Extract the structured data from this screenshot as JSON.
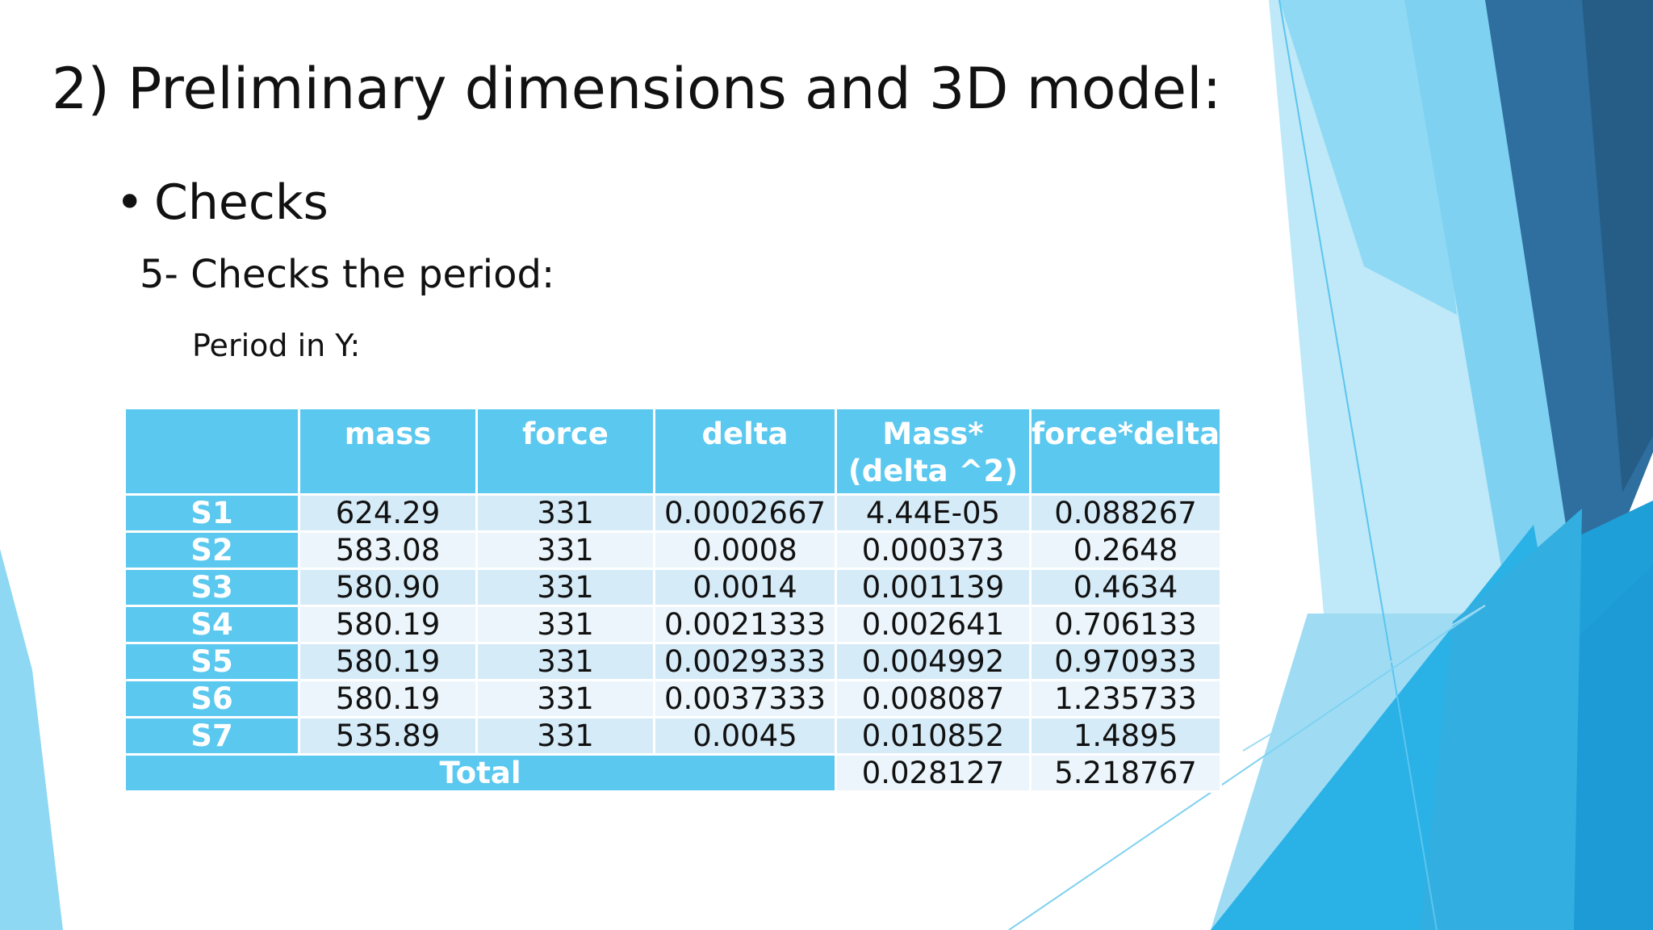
{
  "slide": {
    "title": "2) Preliminary dimensions and 3D model:",
    "bullet": "Checks",
    "subheading": "5- Checks the period:",
    "caption": "Period in Y:"
  },
  "table": {
    "headers": [
      "",
      "mass",
      "force",
      "delta",
      "Mass*(delta ^2)",
      "force*delta"
    ],
    "rows": [
      {
        "label": "S1",
        "mass": "624.29",
        "force": "331",
        "delta": "0.0002667",
        "mass_delta2": "4.44E-05",
        "force_delta": "0.088267"
      },
      {
        "label": "S2",
        "mass": "583.08",
        "force": "331",
        "delta": "0.0008",
        "mass_delta2": "0.000373",
        "force_delta": "0.2648"
      },
      {
        "label": "S3",
        "mass": "580.90",
        "force": "331",
        "delta": "0.0014",
        "mass_delta2": "0.001139",
        "force_delta": "0.4634"
      },
      {
        "label": "S4",
        "mass": "580.19",
        "force": "331",
        "delta": "0.0021333",
        "mass_delta2": "0.002641",
        "force_delta": "0.706133"
      },
      {
        "label": "S5",
        "mass": "580.19",
        "force": "331",
        "delta": "0.0029333",
        "mass_delta2": "0.004992",
        "force_delta": "0.970933"
      },
      {
        "label": "S6",
        "mass": "580.19",
        "force": "331",
        "delta": "0.0037333",
        "mass_delta2": "0.008087",
        "force_delta": "1.235733"
      },
      {
        "label": "S7",
        "mass": "535.89",
        "force": "331",
        "delta": "0.0045",
        "mass_delta2": "0.010852",
        "force_delta": "1.4895"
      }
    ],
    "total": {
      "label": "Total",
      "mass_delta2": "0.028127",
      "force_delta": "5.218767"
    }
  },
  "colors": {
    "header_fill": "#5bc8ef",
    "row_band_dark": "#d6ebf8",
    "row_band_light": "#ebf5fb",
    "accent_light": "#7fd1f1",
    "accent_mid": "#2aaee3",
    "accent_dark": "#2e6f9f"
  }
}
